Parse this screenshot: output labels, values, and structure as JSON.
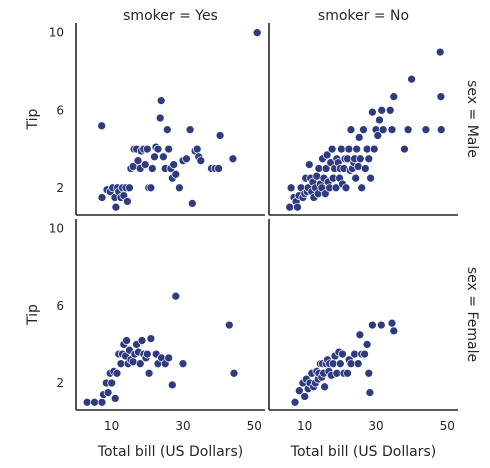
{
  "chart_data": {
    "type": "scatter",
    "x_label": "Total bill (US Dollars)",
    "y_label": "Tip",
    "xlim": [
      0,
      53
    ],
    "ylim": [
      0.6,
      10.5
    ],
    "x_ticks": [
      10,
      30,
      50
    ],
    "y_ticks": [
      2,
      6,
      10
    ],
    "point_color": "#2f3b80",
    "col_titles": [
      "smoker = Yes",
      "smoker = No"
    ],
    "row_titles": [
      "sex = Male",
      "sex = Female"
    ],
    "panels": [
      {
        "row": 0,
        "col": 0,
        "points": [
          [
            7.3,
            1.5
          ],
          [
            8.7,
            1.9
          ],
          [
            9.6,
            1.8
          ],
          [
            10.3,
            2.0
          ],
          [
            10.9,
            1.5
          ],
          [
            11.2,
            1.0
          ],
          [
            11.6,
            2.0
          ],
          [
            12.0,
            1.8
          ],
          [
            12.6,
            1.5
          ],
          [
            13.0,
            2.0
          ],
          [
            13.4,
            1.6
          ],
          [
            14.0,
            2.0
          ],
          [
            14.4,
            1.3
          ],
          [
            15.0,
            2.0
          ],
          [
            15.4,
            3.0
          ],
          [
            16.0,
            3.1
          ],
          [
            16.3,
            4.0
          ],
          [
            17.0,
            4.0
          ],
          [
            17.4,
            3.4
          ],
          [
            18.0,
            3.0
          ],
          [
            18.3,
            3.9
          ],
          [
            19.0,
            4.0
          ],
          [
            19.4,
            3.2
          ],
          [
            20.0,
            4.0
          ],
          [
            20.4,
            2.0
          ],
          [
            21.0,
            2.0
          ],
          [
            21.4,
            3.0
          ],
          [
            22.0,
            3.6
          ],
          [
            22.4,
            4.1
          ],
          [
            23.0,
            4.0
          ],
          [
            23.6,
            5.6
          ],
          [
            23.9,
            6.5
          ],
          [
            24.5,
            3.6
          ],
          [
            25.0,
            3.0
          ],
          [
            25.6,
            5.0
          ],
          [
            26.0,
            4.0
          ],
          [
            26.6,
            3.0
          ],
          [
            27.0,
            2.5
          ],
          [
            27.4,
            3.2
          ],
          [
            28.0,
            2.7
          ],
          [
            29.0,
            2.0
          ],
          [
            30.0,
            3.4
          ],
          [
            31.0,
            3.5
          ],
          [
            32.0,
            5.0
          ],
          [
            32.6,
            1.2
          ],
          [
            33.4,
            3.9
          ],
          [
            34.0,
            4.0
          ],
          [
            34.4,
            3.6
          ],
          [
            35.0,
            3.4
          ],
          [
            38.0,
            3.0
          ],
          [
            39.0,
            3.0
          ],
          [
            40.0,
            3.0
          ],
          [
            40.4,
            4.7
          ],
          [
            44.0,
            3.5
          ],
          [
            50.8,
            10.0
          ],
          [
            7.2,
            5.2
          ]
        ]
      },
      {
        "row": 0,
        "col": 1,
        "points": [
          [
            5.8,
            1.0
          ],
          [
            6.2,
            2.0
          ],
          [
            7.0,
            1.5
          ],
          [
            7.6,
            1.3
          ],
          [
            8.0,
            1.0
          ],
          [
            8.4,
            1.6
          ],
          [
            9.0,
            2.0
          ],
          [
            9.5,
            1.5
          ],
          [
            10.0,
            1.7
          ],
          [
            10.3,
            2.5
          ],
          [
            10.7,
            1.8
          ],
          [
            11.0,
            2.0
          ],
          [
            11.3,
            3.2
          ],
          [
            11.7,
            2.5
          ],
          [
            12.0,
            1.8
          ],
          [
            12.3,
            2.3
          ],
          [
            12.6,
            1.5
          ],
          [
            13.0,
            2.0
          ],
          [
            13.4,
            2.6
          ],
          [
            13.8,
            1.7
          ],
          [
            14.0,
            3.0
          ],
          [
            14.4,
            2.2
          ],
          [
            14.8,
            2.0
          ],
          [
            15.0,
            3.5
          ],
          [
            15.4,
            2.5
          ],
          [
            15.8,
            1.7
          ],
          [
            16.0,
            3.0
          ],
          [
            16.3,
            3.7
          ],
          [
            16.6,
            2.3
          ],
          [
            17.0,
            2.0
          ],
          [
            17.3,
            3.3
          ],
          [
            17.7,
            4.0
          ],
          [
            18.0,
            2.5
          ],
          [
            18.4,
            3.0
          ],
          [
            18.8,
            2.0
          ],
          [
            19.0,
            3.5
          ],
          [
            19.4,
            3.3
          ],
          [
            19.8,
            2.5
          ],
          [
            20.0,
            3.0
          ],
          [
            20.3,
            4.0
          ],
          [
            20.6,
            2.2
          ],
          [
            21.0,
            3.0
          ],
          [
            21.3,
            3.5
          ],
          [
            21.6,
            2.0
          ],
          [
            22.0,
            3.5
          ],
          [
            22.4,
            4.0
          ],
          [
            22.8,
            2.9
          ],
          [
            23.0,
            5.0
          ],
          [
            23.4,
            3.0
          ],
          [
            23.8,
            3.3
          ],
          [
            24.0,
            3.5
          ],
          [
            24.3,
            2.5
          ],
          [
            24.6,
            4.0
          ],
          [
            25.0,
            3.1
          ],
          [
            25.3,
            4.6
          ],
          [
            25.6,
            3.5
          ],
          [
            26.0,
            2.0
          ],
          [
            26.5,
            5.0
          ],
          [
            27.0,
            3.0
          ],
          [
            27.5,
            4.0
          ],
          [
            28.0,
            3.5
          ],
          [
            28.5,
            2.5
          ],
          [
            29.0,
            5.9
          ],
          [
            29.5,
            4.0
          ],
          [
            30.0,
            5.0
          ],
          [
            30.5,
            4.7
          ],
          [
            31.0,
            5.5
          ],
          [
            31.6,
            6.0
          ],
          [
            32.0,
            5.0
          ],
          [
            34.0,
            6.0
          ],
          [
            34.5,
            5.0
          ],
          [
            35.0,
            6.7
          ],
          [
            38.0,
            4.0
          ],
          [
            39.0,
            5.0
          ],
          [
            40.0,
            7.6
          ],
          [
            44.0,
            5.0
          ],
          [
            48.0,
            9.0
          ],
          [
            48.2,
            6.7
          ],
          [
            48.3,
            5.0
          ]
        ]
      },
      {
        "row": 1,
        "col": 0,
        "points": [
          [
            3.1,
            1.0
          ],
          [
            5.2,
            1.0
          ],
          [
            7.3,
            1.0
          ],
          [
            7.7,
            1.4
          ],
          [
            8.5,
            2.0
          ],
          [
            9.0,
            1.5
          ],
          [
            9.6,
            2.5
          ],
          [
            10.0,
            2.0
          ],
          [
            10.6,
            2.6
          ],
          [
            11.0,
            1.2
          ],
          [
            11.5,
            2.5
          ],
          [
            12.0,
            3.5
          ],
          [
            12.6,
            3.0
          ],
          [
            13.0,
            3.5
          ],
          [
            13.4,
            4.0
          ],
          [
            13.9,
            3.4
          ],
          [
            14.2,
            4.2
          ],
          [
            14.6,
            3.0
          ],
          [
            15.0,
            3.7
          ],
          [
            15.4,
            3.2
          ],
          [
            16.0,
            3.1
          ],
          [
            16.5,
            3.5
          ],
          [
            17.0,
            4.0
          ],
          [
            17.5,
            3.6
          ],
          [
            18.0,
            3.0
          ],
          [
            18.5,
            4.2
          ],
          [
            19.0,
            3.5
          ],
          [
            19.6,
            3.3
          ],
          [
            20.0,
            3.5
          ],
          [
            20.5,
            2.5
          ],
          [
            21.0,
            4.3
          ],
          [
            22.5,
            3.5
          ],
          [
            23.0,
            3.0
          ],
          [
            24.0,
            3.3
          ],
          [
            25.0,
            3.0
          ],
          [
            26.0,
            3.3
          ],
          [
            27.0,
            1.9
          ],
          [
            28.0,
            6.5
          ],
          [
            30.0,
            3.0
          ],
          [
            43.0,
            5.0
          ],
          [
            44.3,
            2.5
          ]
        ]
      },
      {
        "row": 1,
        "col": 1,
        "points": [
          [
            7.3,
            1.0
          ],
          [
            8.5,
            1.6
          ],
          [
            9.5,
            2.0
          ],
          [
            10.0,
            1.3
          ],
          [
            10.5,
            2.2
          ],
          [
            11.0,
            1.7
          ],
          [
            11.5,
            2.0
          ],
          [
            12.0,
            2.5
          ],
          [
            12.5,
            1.8
          ],
          [
            13.0,
            2.0
          ],
          [
            13.4,
            2.6
          ],
          [
            13.8,
            2.2
          ],
          [
            14.0,
            2.5
          ],
          [
            14.4,
            3.0
          ],
          [
            14.8,
            2.3
          ],
          [
            15.0,
            3.0
          ],
          [
            15.3,
            2.5
          ],
          [
            15.6,
            1.8
          ],
          [
            16.0,
            3.0
          ],
          [
            16.4,
            3.2
          ],
          [
            16.8,
            2.6
          ],
          [
            17.0,
            3.0
          ],
          [
            17.5,
            2.4
          ],
          [
            18.0,
            3.0
          ],
          [
            18.5,
            3.4
          ],
          [
            19.0,
            2.5
          ],
          [
            19.6,
            3.6
          ],
          [
            20.0,
            3.0
          ],
          [
            20.6,
            3.5
          ],
          [
            21.0,
            2.5
          ],
          [
            22.0,
            2.5
          ],
          [
            22.5,
            3.2
          ],
          [
            23.0,
            3.0
          ],
          [
            24.0,
            3.5
          ],
          [
            25.0,
            3.0
          ],
          [
            25.5,
            4.5
          ],
          [
            26.0,
            3.5
          ],
          [
            26.8,
            3.5
          ],
          [
            27.5,
            4.0
          ],
          [
            28.0,
            2.5
          ],
          [
            28.3,
            1.5
          ],
          [
            29.0,
            5.0
          ],
          [
            31.5,
            5.0
          ],
          [
            34.5,
            5.1
          ],
          [
            35.0,
            4.7
          ]
        ]
      }
    ]
  }
}
